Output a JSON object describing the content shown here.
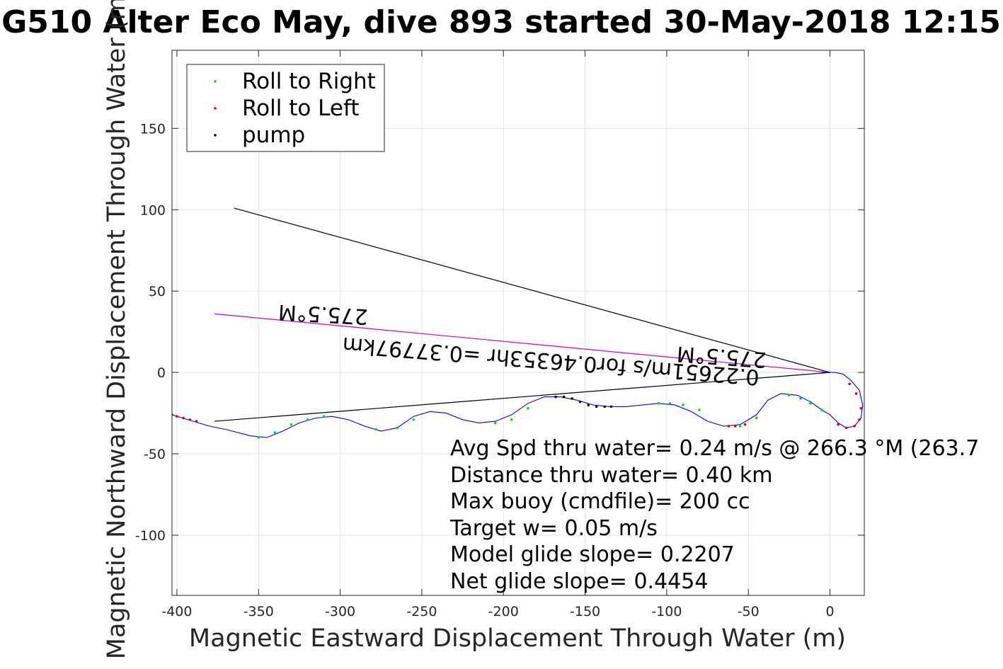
{
  "chart_data": {
    "type": "line",
    "title": "G510 Alter Eco May, dive 893 started 30-May-2018 12:15",
    "xlabel": "Magnetic Eastward Displacement Through Water (m)",
    "ylabel": "Magnetic Northward Displacement Through Water (m)",
    "xlim": [
      -403,
      21
    ],
    "ylim": [
      -137,
      198
    ],
    "xticks": [
      -400,
      -350,
      -300,
      -250,
      -200,
      -150,
      -100,
      -50,
      0
    ],
    "yticks": [
      150,
      100,
      50,
      0,
      -50,
      -100
    ],
    "grid": true,
    "legend": {
      "placement": "top-left",
      "entries": [
        {
          "label": "Roll to Right",
          "color": "#00dd00"
        },
        {
          "label": "Roll to Left",
          "color": "#ee0000"
        },
        {
          "label": "pump",
          "color": "#000000"
        }
      ]
    },
    "track": {
      "name": "track",
      "color": "#0000ff",
      "x": [
        -403,
        -390,
        -380,
        -370,
        -355,
        -345,
        -335,
        -325,
        -315,
        -305,
        -295,
        -285,
        -275,
        -265,
        -255,
        -245,
        -235,
        -225,
        -215,
        -205,
        -195,
        -185,
        -175,
        -165,
        -155,
        -145,
        -135,
        -125,
        -115,
        -105,
        -95,
        -85,
        -75,
        -65,
        -55,
        -45,
        -38,
        -30,
        -20,
        -12,
        -5,
        0,
        5,
        10,
        15,
        19,
        20,
        18,
        13,
        8,
        3,
        0,
        -5
      ],
      "y": [
        -26,
        -30,
        -33,
        -35,
        -39,
        -40,
        -36,
        -31,
        -28,
        -27,
        -29,
        -33,
        -36,
        -34,
        -27,
        -24,
        -25,
        -29,
        -31,
        -30,
        -26,
        -19,
        -15,
        -15,
        -17,
        -20,
        -21,
        -21,
        -20,
        -19,
        -20,
        -24,
        -30,
        -33,
        -32,
        -26,
        -17,
        -13,
        -14,
        -18,
        -23,
        -26,
        -31,
        -34,
        -33,
        -28,
        -20,
        -11,
        -5,
        -1,
        0,
        0,
        0
      ]
    },
    "points": {
      "roll_right": {
        "color": "#00dd00",
        "x": [
          -350,
          -340,
          -330,
          -320,
          -310,
          -278,
          -265,
          -255,
          -205,
          -195,
          -185,
          -105,
          -98,
          -90,
          -80,
          -55,
          -45,
          -25,
          -18,
          -12,
          -5
        ],
        "y": [
          -40,
          -37,
          -32,
          -29,
          -27,
          -35,
          -34,
          -29,
          -31,
          -29,
          -22,
          -19,
          -19,
          -20,
          -23,
          -33,
          -28,
          -14,
          -16,
          -19,
          -23
        ]
      },
      "roll_left": {
        "color": "#ee0000",
        "x": [
          -403,
          -400,
          -396,
          -392,
          -388,
          -62,
          -58,
          -52,
          5,
          10,
          15,
          18,
          19,
          16,
          12
        ],
        "y": [
          -26,
          -27,
          -28,
          -29,
          -30,
          -33,
          -33,
          -32,
          -32,
          -34,
          -33,
          -29,
          -22,
          -13,
          -7
        ]
      },
      "pump": {
        "color": "#000000",
        "x": [
          -168,
          -163,
          -158,
          -153,
          -148,
          -143,
          -138,
          -134
        ],
        "y": [
          -15,
          -15,
          -16,
          -18,
          -20,
          -21,
          -21,
          -21
        ]
      }
    },
    "lines": [
      {
        "name": "overall heading line",
        "color": "#000000",
        "x": [
          -365,
          0
        ],
        "y": [
          101,
          0
        ]
      },
      {
        "name": "current line",
        "color": "#000000",
        "x": [
          -377,
          0
        ],
        "y": [
          -30,
          0
        ]
      },
      {
        "name": "dive heading line",
        "color": "#cc00cc",
        "x": [
          -377,
          0
        ],
        "y": [
          36,
          0
        ]
      }
    ],
    "annotations": {
      "heading_top": "275.5°M",
      "heading_mid": "275.5°M",
      "current_text": "0.22651m/s for0.46353hr =0.37797km"
    },
    "summary_text": [
      "Avg Spd thru water=  0.24 m/s @ 266.3 °M (263.7",
      "Distance thru water=  0.40 km",
      "Max buoy (cmdfile)= 200 cc",
      "Target w= 0.05 m/s",
      "Model glide slope= 0.2207",
      "Net glide slope= 0.4454"
    ]
  }
}
